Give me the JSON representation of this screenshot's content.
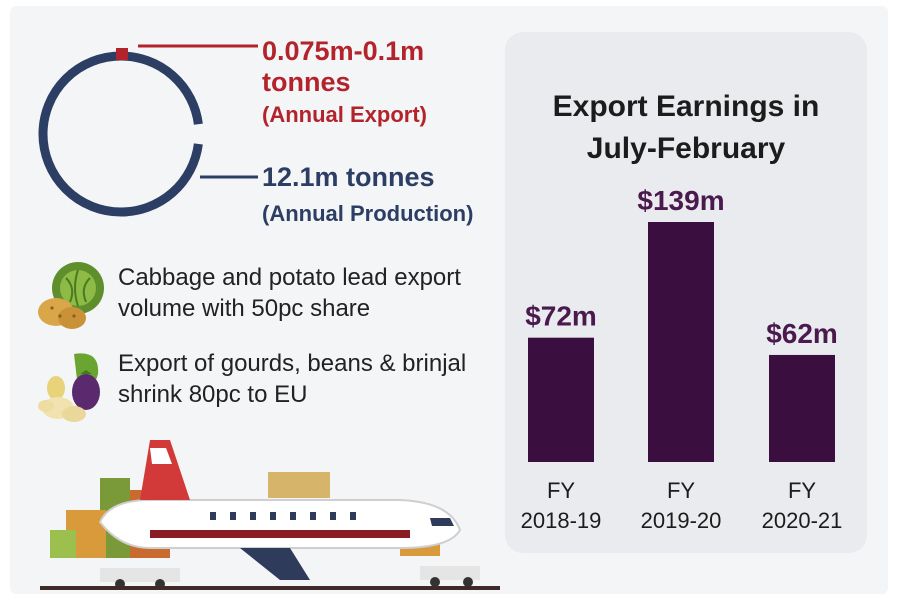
{
  "stats": {
    "export_value": "0.075m-0.1m tonnes",
    "export_note": "(Annual Export)",
    "production_value": "12.1m tonnes",
    "production_note": "(Annual Production)"
  },
  "facts": [
    "Cabbage and potato lead export volume with 50pc share",
    "Export of gourds, beans & brinjal shrink 80pc to EU"
  ],
  "icons": [
    "cabbage-potato-icon",
    "gourd-bean-brinjal-icon",
    "cargo-plane-illustration"
  ],
  "colors": {
    "export_red": "#b3232b",
    "production_navy": "#2c3e63",
    "bar_purple": "#3a0f3f",
    "label_purple": "#4a1a4e",
    "panel_bg": "#e9ebee"
  },
  "chart_data": {
    "type": "bar",
    "title": "Export Earnings in July-February",
    "categories": [
      "FY 2018-19",
      "FY 2019-20",
      "FY 2020-21"
    ],
    "values": [
      72,
      139,
      62
    ],
    "value_labels": [
      "$72m",
      "$139m",
      "$62m"
    ],
    "xlabel": "",
    "ylabel": "",
    "ylim": [
      0,
      139
    ],
    "grid": false,
    "legend": "none"
  }
}
